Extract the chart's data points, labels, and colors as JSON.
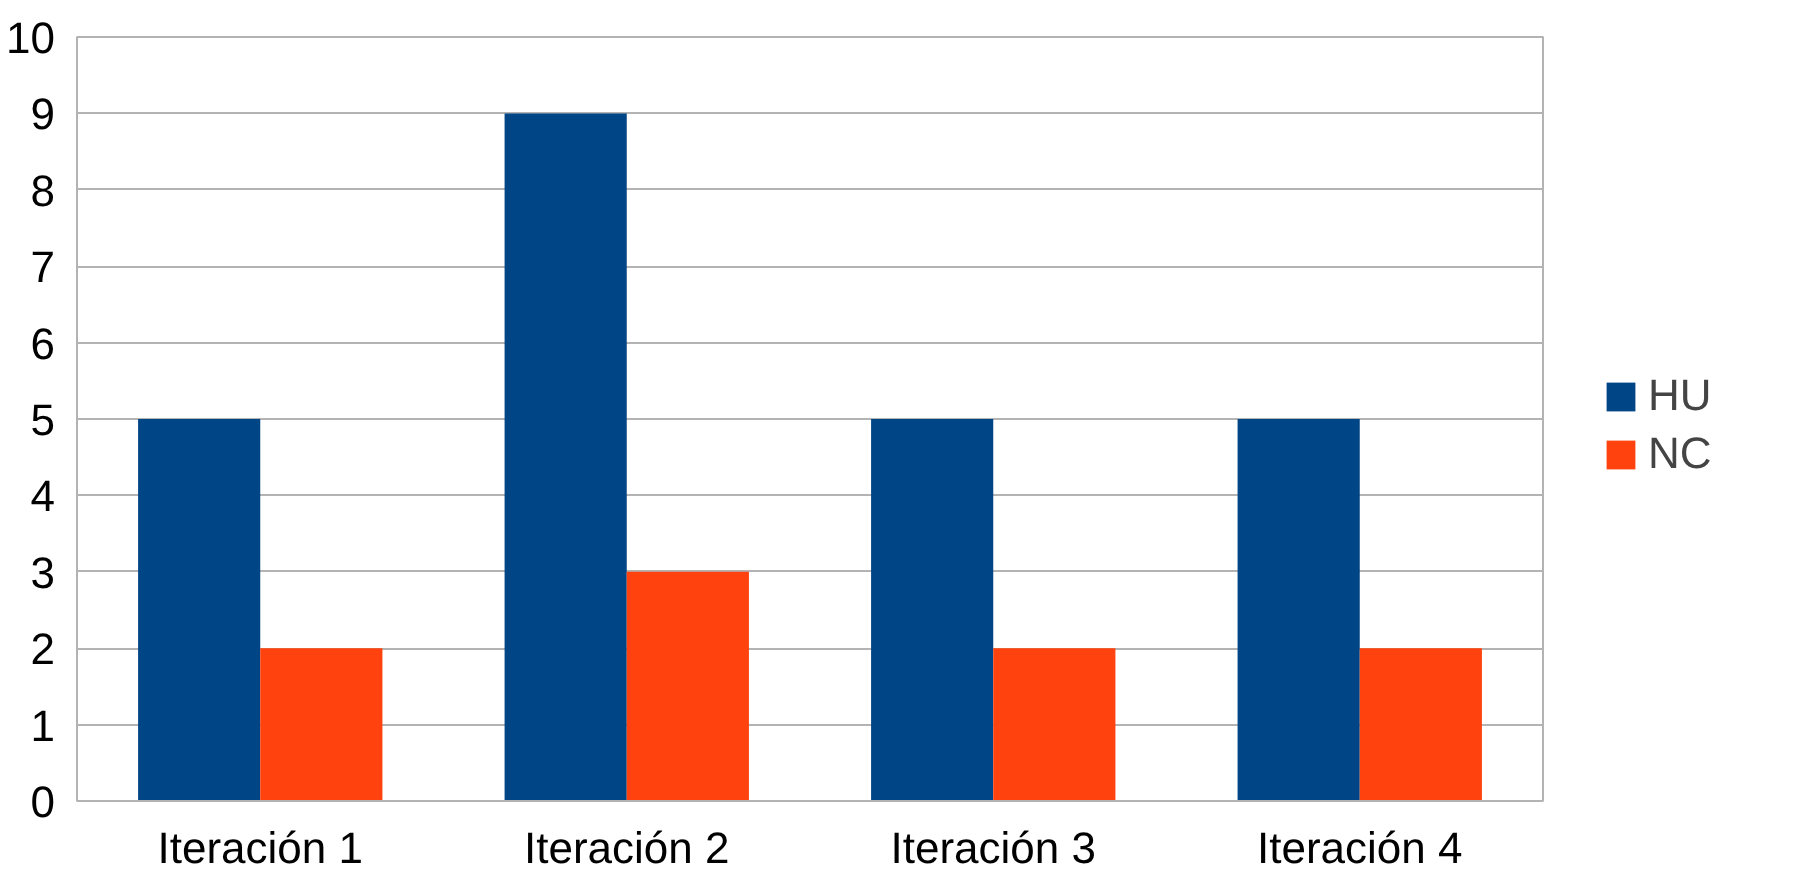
{
  "chart_data": {
    "type": "bar",
    "categories": [
      "Iteración 1",
      "Iteración 2",
      "Iteración 3",
      "Iteración 4"
    ],
    "series": [
      {
        "name": "HU",
        "color": "#004586",
        "values": [
          5,
          9,
          5,
          5
        ]
      },
      {
        "name": "NC",
        "color": "#ff420e",
        "values": [
          2,
          3,
          2,
          2
        ]
      }
    ],
    "ylim": [
      0,
      10
    ],
    "yticks": [
      0,
      1,
      2,
      3,
      4,
      5,
      6,
      7,
      8,
      9,
      10
    ],
    "grid": "y",
    "legend": "right"
  }
}
